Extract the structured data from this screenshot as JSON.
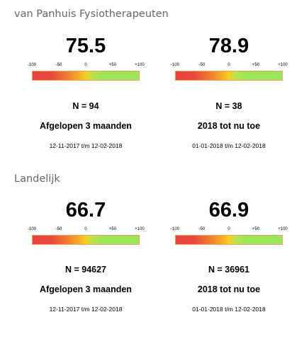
{
  "sections": [
    {
      "title": "van Panhuis Fysiotherapeuten",
      "cards": [
        {
          "score": "75.5",
          "n": "N = 94",
          "period": "Afgelopen 3 maanden",
          "daterange": "12-11-2017 t/m 12-02-2018"
        },
        {
          "score": "78.9",
          "n": "N = 38",
          "period": "2018 tot nu toe",
          "daterange": "01-01-2018 t/m 12-02-2018"
        }
      ]
    },
    {
      "title": "Landelijk",
      "cards": [
        {
          "score": "66.7",
          "n": "N = 94627",
          "period": "Afgelopen 3 maanden",
          "daterange": "12-11-2017 t/m 12-02-2018"
        },
        {
          "score": "66.9",
          "n": "N = 36961",
          "period": "2018 tot nu toe",
          "daterange": "01-01-2018 t/m 12-02-2018"
        }
      ]
    }
  ],
  "gauge": {
    "ticks": [
      "-100",
      "-50",
      "0",
      "+50",
      "+100"
    ],
    "colors": {
      "low": "#e84040",
      "mid": "#f6cf20",
      "high": "#9be55a"
    }
  }
}
